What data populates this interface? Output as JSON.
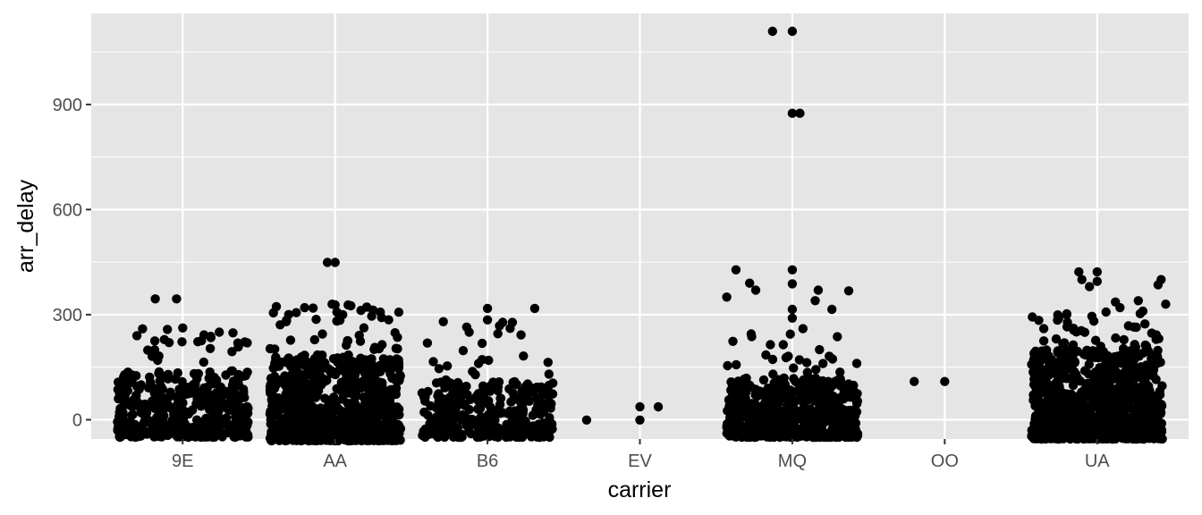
{
  "chart_data": {
    "type": "scatter",
    "title": "",
    "xlabel": "carrier",
    "ylabel": "arr_delay",
    "categories": [
      "9E",
      "AA",
      "B6",
      "EV",
      "MQ",
      "OO",
      "UA"
    ],
    "ylim": [
      -55,
      1160
    ],
    "yticks": [
      0,
      300,
      600,
      900
    ],
    "grid": true,
    "jitter": "horizontal",
    "colors": {
      "panel": "#e5e5e5",
      "grid": "#ffffff",
      "point": "#000000",
      "tick_text": "#4d4d4d"
    },
    "groups": [
      {
        "category": "9E",
        "count": 460,
        "core_max": 140,
        "range": [
          -50,
          260
        ],
        "outliers": [
          [
            -0.18,
            345
          ],
          [
            -0.04,
            345
          ],
          [
            0.0,
            262
          ],
          [
            -0.1,
            258
          ],
          [
            0.24,
            250
          ],
          [
            0.33,
            248
          ],
          [
            0.14,
            242
          ],
          [
            -0.3,
            240
          ]
        ]
      },
      {
        "category": "AA",
        "count": 880,
        "core_max": 180,
        "range": [
          -60,
          330
        ],
        "outliers": [
          [
            -0.05,
            449
          ],
          [
            0.0,
            449
          ],
          [
            -0.02,
            330
          ],
          [
            0.0,
            328
          ],
          [
            -0.2,
            320
          ],
          [
            0.17,
            312
          ],
          [
            0.05,
            300
          ],
          [
            -0.32,
            280
          ]
        ]
      },
      {
        "category": "B6",
        "count": 330,
        "core_max": 110,
        "range": [
          -50,
          280
        ],
        "outliers": [
          [
            0.0,
            318
          ],
          [
            0.31,
            318
          ],
          [
            0.0,
            285
          ],
          [
            0.1,
            278
          ],
          [
            -0.29,
            280
          ],
          [
            -0.12,
            250
          ],
          [
            0.22,
            242
          ]
        ]
      },
      {
        "category": "EV",
        "count": 0,
        "core_max": 0,
        "range": [
          0,
          0
        ],
        "outliers": [
          [
            -0.35,
            -1
          ],
          [
            0.0,
            -1
          ],
          [
            0.0,
            37
          ],
          [
            0.12,
            37
          ]
        ]
      },
      {
        "category": "MQ",
        "count": 560,
        "core_max": 120,
        "range": [
          -50,
          250
        ],
        "outliers": [
          [
            -0.13,
            1109
          ],
          [
            0.0,
            1109
          ],
          [
            0.0,
            875
          ],
          [
            0.05,
            875
          ],
          [
            -0.37,
            428
          ],
          [
            0.0,
            428
          ],
          [
            0.0,
            388
          ],
          [
            -0.28,
            390
          ],
          [
            -0.24,
            370
          ],
          [
            0.17,
            370
          ],
          [
            0.37,
            368
          ],
          [
            0.15,
            340
          ],
          [
            0.26,
            315
          ],
          [
            0.0,
            315
          ],
          [
            0.0,
            290
          ],
          [
            -0.43,
            350
          ],
          [
            0.07,
            260
          ],
          [
            -0.27,
            245
          ]
        ]
      },
      {
        "category": "OO",
        "count": 0,
        "core_max": 0,
        "range": [
          0,
          0
        ],
        "outliers": [
          [
            -0.2,
            109
          ],
          [
            0.0,
            109
          ]
        ]
      },
      {
        "category": "UA",
        "count": 980,
        "core_max": 200,
        "range": [
          -55,
          310
        ],
        "outliers": [
          [
            -0.12,
            422
          ],
          [
            0.0,
            422
          ],
          [
            -0.1,
            400
          ],
          [
            0.42,
            400
          ],
          [
            0.0,
            395
          ],
          [
            0.4,
            385
          ],
          [
            -0.05,
            380
          ],
          [
            0.27,
            340
          ],
          [
            0.12,
            336
          ],
          [
            0.15,
            320
          ],
          [
            0.3,
            310
          ],
          [
            -0.2,
            300
          ],
          [
            0.45,
            330
          ],
          [
            -0.35,
            260
          ]
        ]
      }
    ]
  }
}
